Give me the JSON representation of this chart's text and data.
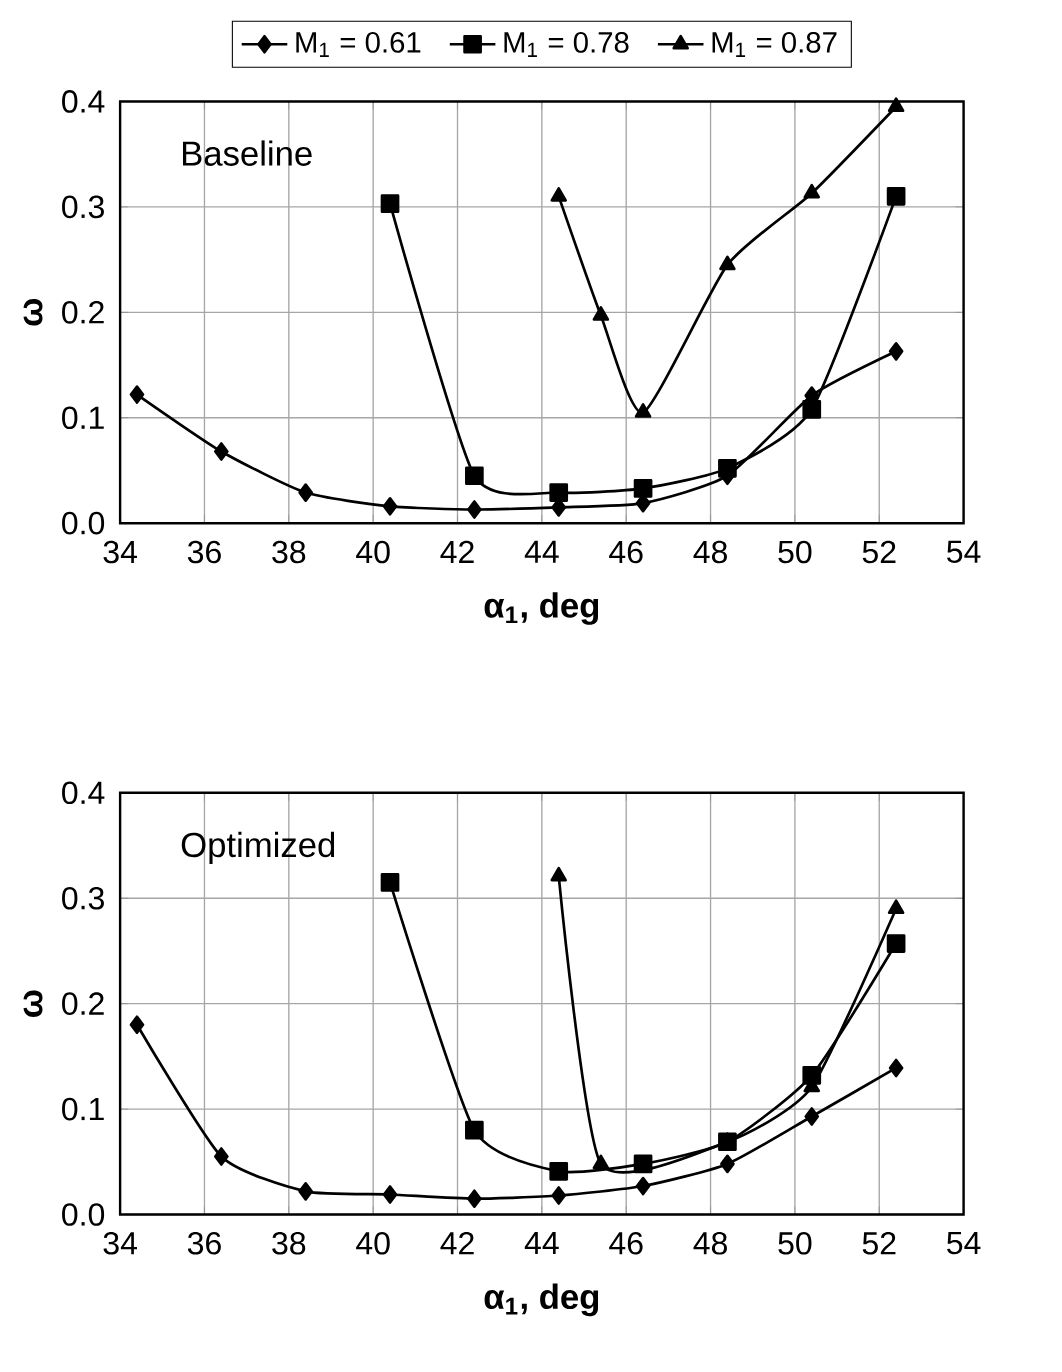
{
  "chart_data": [
    {
      "type": "line",
      "annotations": [
        "Baseline"
      ],
      "xlabel": "**α$_{1}$, deg**",
      "ylabel": "**ω**",
      "xlim": [
        34,
        54
      ],
      "xticks": [
        34,
        36,
        38,
        40,
        42,
        44,
        46,
        48,
        50,
        52,
        54
      ],
      "ylim": [
        0,
        0.4
      ],
      "yticks": [
        {
          "value": 0,
          "label": "0.0"
        },
        0.1,
        0.2,
        0.3,
        0.4
      ],
      "grid": true,
      "legend": "top",
      "line_style": "solid",
      "series": [
        {
          "name": "M$_{1}$ = 0.61",
          "color": "#000000",
          "marker": "diamond",
          "x": [
            34.4,
            36.4,
            38.4,
            40.4,
            42.4,
            44.4,
            46.4,
            48.4,
            50.4,
            52.4
          ],
          "values": [
            0.122,
            0.068,
            0.029,
            0.016,
            0.013,
            0.015,
            0.019,
            0.045,
            0.121,
            0.163
          ]
        },
        {
          "name": "M$_{1}$ = 0.78",
          "color": "#000000",
          "marker": "square",
          "x": [
            40.4,
            42.4,
            44.4,
            46.4,
            48.4,
            50.4,
            52.4
          ],
          "values": [
            0.303,
            0.045,
            0.029,
            0.033,
            0.052,
            0.108,
            0.31
          ]
        },
        {
          "name": "M$_{1}$ = 0.87",
          "color": "#000000",
          "marker": "triangle",
          "x": [
            44.4,
            45.4,
            46.4,
            48.4,
            50.4,
            52.4
          ],
          "values": [
            0.31,
            0.197,
            0.105,
            0.245,
            0.313,
            0.395
          ]
        }
      ]
    },
    {
      "type": "line",
      "annotations": [
        "Optimized"
      ],
      "xlabel": "**α$_{1}$, deg**",
      "ylabel": "**ω**",
      "xlim": [
        34,
        54
      ],
      "xticks": [
        34,
        36,
        38,
        40,
        42,
        44,
        46,
        48,
        50,
        52,
        54
      ],
      "ylim": [
        0,
        0.4
      ],
      "yticks": [
        {
          "value": 0,
          "label": "0.0"
        },
        0.1,
        0.2,
        0.3,
        0.4
      ],
      "grid": true,
      "line_style": "solid",
      "series": [
        {
          "color": "#000000",
          "marker": "diamond",
          "x": [
            34.4,
            36.4,
            38.4,
            40.4,
            42.4,
            44.4,
            46.4,
            48.4,
            50.4,
            52.4
          ],
          "values": [
            0.18,
            0.055,
            0.022,
            0.019,
            0.015,
            0.018,
            0.027,
            0.048,
            0.093,
            0.139
          ]
        },
        {
          "color": "#000000",
          "marker": "square",
          "x": [
            40.4,
            42.4,
            44.4,
            46.4,
            48.4,
            50.4,
            52.4
          ],
          "values": [
            0.315,
            0.08,
            0.041,
            0.048,
            0.069,
            0.132,
            0.257
          ]
        },
        {
          "color": "#000000",
          "marker": "triangle",
          "x": [
            44.4,
            45.4,
            48.4,
            50.4,
            52.4
          ],
          "values": [
            0.321,
            0.048,
            0.069,
            0.121,
            0.29
          ]
        }
      ]
    }
  ]
}
